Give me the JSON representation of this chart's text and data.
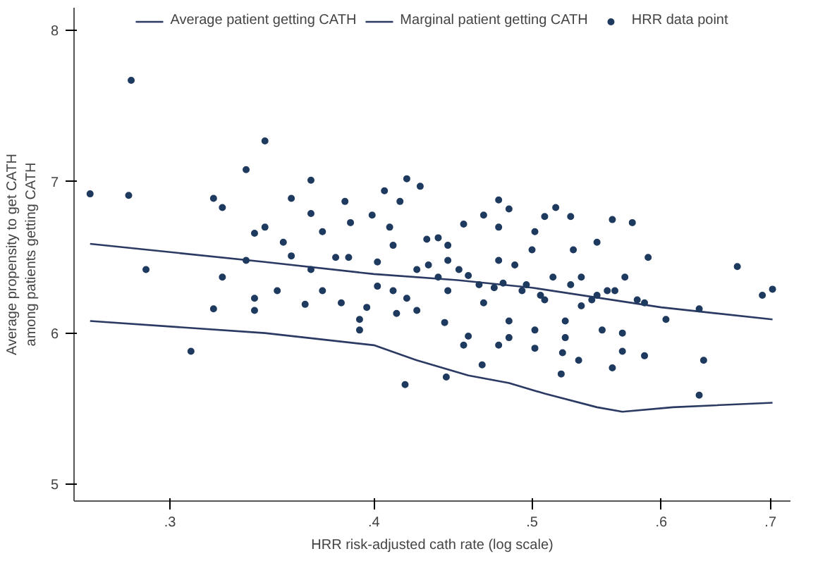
{
  "chart_data": {
    "type": "scatter",
    "xlabel": "HRR risk-adjusted cath rate (log scale)",
    "ylabel": "Average propensity to get CATH\namong patients getting CATH",
    "log": "x",
    "grid": false,
    "legend": "top",
    "xlim": [
      0.262,
      0.72
    ],
    "ylim": [
      4.89,
      8.15
    ],
    "xticks": [
      {
        "value": 0.3,
        "label": ".3"
      },
      {
        "value": 0.4,
        "label": ".4"
      },
      {
        "value": 0.5,
        "label": ".5"
      },
      {
        "value": 0.6,
        "label": ".6"
      },
      {
        "value": 0.7,
        "label": ".7"
      }
    ],
    "yticks": [
      5,
      6,
      7,
      8
    ],
    "series": [
      {
        "name": "Average patient getting CATH",
        "type": "line",
        "line_style": "solid",
        "color": "#2b3a63",
        "x": [
          0.268,
          0.343,
          0.4,
          0.45,
          0.5,
          0.6,
          0.702
        ],
        "values": [
          6.59,
          6.47,
          6.39,
          6.35,
          6.3,
          6.17,
          6.09
        ]
      },
      {
        "name": "Marginal patient getting CATH",
        "type": "line",
        "line_style": "solid",
        "color": "#2b3a63",
        "x": [
          0.268,
          0.343,
          0.4,
          0.425,
          0.457,
          0.484,
          0.509,
          0.548,
          0.568,
          0.61,
          0.702
        ],
        "values": [
          6.08,
          6.0,
          5.92,
          5.82,
          5.72,
          5.67,
          5.6,
          5.51,
          5.48,
          5.51,
          5.54
        ]
      },
      {
        "name": "HRR data point",
        "marker": "circle",
        "color": "#1f3a5f",
        "x": [
          0.284,
          0.268,
          0.283,
          0.29,
          0.309,
          0.319,
          0.323,
          0.319,
          0.323,
          0.334,
          0.338,
          0.338,
          0.334,
          0.343,
          0.343,
          0.338,
          0.349,
          0.352,
          0.356,
          0.356,
          0.363,
          0.366,
          0.366,
          0.366,
          0.372,
          0.372,
          0.379,
          0.382,
          0.384,
          0.386,
          0.387,
          0.392,
          0.392,
          0.396,
          0.399,
          0.402,
          0.409,
          0.411,
          0.406,
          0.415,
          0.419,
          0.427,
          0.418,
          0.413,
          0.419,
          0.425,
          0.431,
          0.432,
          0.438,
          0.444,
          0.444,
          0.442,
          0.443,
          0.454,
          0.454,
          0.457,
          0.457,
          0.467,
          0.466,
          0.467,
          0.477,
          0.477,
          0.477,
          0.477,
          0.484,
          0.484,
          0.484,
          0.48,
          0.488,
          0.496,
          0.5,
          0.502,
          0.502,
          0.502,
          0.509,
          0.509,
          0.517,
          0.515,
          0.522,
          0.521,
          0.524,
          0.524,
          0.528,
          0.53,
          0.534,
          0.536,
          0.536,
          0.548,
          0.552,
          0.548,
          0.56,
          0.56,
          0.562,
          0.568,
          0.568,
          0.576,
          0.57,
          0.586,
          0.589,
          0.586,
          0.604,
          0.633,
          0.637,
          0.633,
          0.668,
          0.692,
          0.702,
          0.411,
          0.425,
          0.438,
          0.451,
          0.464,
          0.474,
          0.493,
          0.506,
          0.528,
          0.544,
          0.556,
          0.58,
          0.402,
          0.444
        ],
        "values": [
          7.67,
          6.92,
          6.91,
          6.42,
          5.88,
          6.89,
          6.83,
          6.16,
          6.37,
          7.08,
          6.15,
          6.23,
          6.48,
          7.27,
          6.7,
          6.66,
          6.28,
          6.6,
          6.89,
          6.51,
          6.19,
          7.01,
          6.79,
          6.42,
          6.67,
          6.28,
          6.5,
          6.2,
          6.87,
          6.5,
          6.73,
          6.02,
          6.09,
          6.17,
          6.78,
          6.31,
          6.7,
          6.58,
          6.94,
          6.87,
          7.02,
          6.97,
          5.66,
          6.13,
          6.23,
          6.15,
          6.62,
          6.45,
          6.63,
          6.58,
          6.28,
          6.07,
          5.71,
          6.72,
          5.92,
          6.38,
          5.98,
          6.78,
          5.79,
          6.2,
          6.88,
          6.7,
          6.48,
          5.92,
          6.82,
          6.08,
          5.97,
          6.33,
          6.45,
          6.32,
          6.55,
          5.9,
          6.67,
          6.02,
          6.22,
          6.77,
          6.83,
          6.37,
          5.87,
          5.73,
          6.08,
          5.97,
          6.77,
          6.55,
          5.82,
          6.37,
          6.18,
          6.6,
          6.02,
          6.25,
          6.75,
          5.77,
          6.28,
          5.88,
          6.0,
          6.73,
          6.37,
          5.85,
          6.5,
          6.2,
          6.09,
          5.59,
          5.82,
          6.16,
          6.44,
          6.25,
          6.29,
          6.28,
          6.42,
          6.37,
          6.42,
          6.32,
          6.3,
          6.28,
          6.25,
          6.32,
          6.22,
          6.28,
          6.22,
          6.47,
          6.48
        ]
      }
    ]
  }
}
